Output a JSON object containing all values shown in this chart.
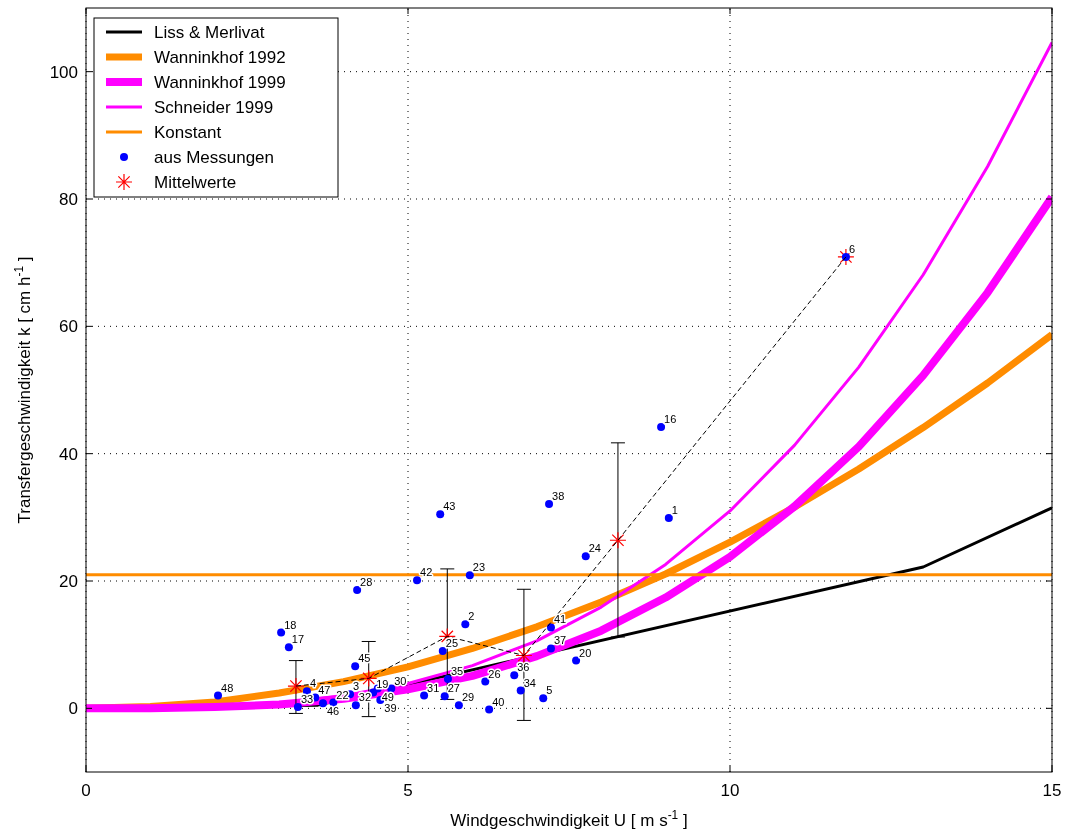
{
  "chart_data": {
    "type": "line",
    "xlabel": "Windgeschwindigkeit U [ m s$^{-1}$ ]",
    "ylabel": "Transfergeschwindigkeit k [ cm h$^{-1}$ ]",
    "xlim": [
      0,
      15
    ],
    "ylim": [
      -10,
      110
    ],
    "xticks": [
      0,
      5,
      10,
      15
    ],
    "yticks": [
      0,
      20,
      40,
      60,
      80,
      100
    ],
    "grid": true,
    "legend": "top left",
    "series": [
      {
        "name": "Liss & Merlivat",
        "color": "#000000",
        "marker": "none",
        "x": [
          0,
          3.6,
          13,
          15
        ],
        "values": [
          0,
          0.5,
          22.2,
          31.5
        ]
      },
      {
        "name": "Wanninkhof 1992",
        "color": "#ff8c00",
        "marker": "none",
        "x": [
          0,
          1,
          2,
          3,
          4,
          5,
          6,
          7,
          8,
          9,
          10,
          11,
          12,
          13,
          14,
          15
        ],
        "values": [
          0,
          0.3,
          1,
          2.4,
          4.2,
          6.5,
          9.4,
          12.8,
          16.7,
          21.1,
          26.1,
          31.6,
          37.6,
          44.1,
          51.1,
          58.7
        ]
      },
      {
        "name": "Wanninkhof 1999",
        "color": "#ff00ff",
        "marker": "none",
        "x": [
          0,
          1,
          2,
          3,
          4,
          5,
          6,
          7,
          8,
          9,
          10,
          11,
          12,
          13,
          14,
          15
        ],
        "values": [
          0,
          0,
          0.2,
          0.6,
          1.5,
          3,
          5.1,
          8.2,
          12.2,
          17.4,
          23.8,
          31.7,
          41.1,
          52.3,
          65.3,
          80.3
        ]
      },
      {
        "name": "Schneider 1999",
        "color": "#ff00ff",
        "marker": "none",
        "x": [
          0,
          1,
          2,
          3,
          4,
          5,
          6,
          7,
          8,
          9,
          10,
          11,
          12,
          13,
          14,
          15
        ],
        "values": [
          0,
          0,
          0.3,
          0.8,
          2,
          3.9,
          6.7,
          10.6,
          15.9,
          22.6,
          31,
          41.3,
          53.6,
          68.1,
          85.1,
          104.6
        ]
      },
      {
        "name": "Konstant",
        "color": "#ff8c00",
        "marker": "none",
        "x": [
          0,
          15
        ],
        "values": [
          21,
          21
        ]
      },
      {
        "name": "aus Messungen",
        "type": "scatter",
        "color": "#0000ff",
        "marker": "circle",
        "x": [
          2.05,
          3.03,
          3.15,
          3.43,
          3.29,
          3.56,
          3.68,
          3.84,
          4.1,
          4.19,
          4.18,
          4.46,
          4.53,
          4.74,
          4.57,
          5.25,
          5.57,
          5.62,
          5.54,
          5.89,
          6.2,
          5.79,
          6.26,
          6.65,
          6.75,
          7.1,
          7.22,
          7.22,
          7.61,
          4.21,
          5.14,
          5.96,
          5.5,
          7.19,
          7.76,
          9.05,
          8.93,
          11.8
        ],
        "values": [
          2,
          11.9,
          9.6,
          2.7,
          0.2,
          1.7,
          0.8,
          0.9,
          2.2,
          0.5,
          6.6,
          2.5,
          3.1,
          3.1,
          1.3,
          2,
          1.9,
          4.6,
          9,
          13.2,
          4.2,
          0.5,
          -0.2,
          5.2,
          2.8,
          1.6,
          9.4,
          12.7,
          7.5,
          18.6,
          20.1,
          20.9,
          30.5,
          32.1,
          23.9,
          29.9,
          44.2,
          70.9
        ]
      },
      {
        "color": "#000000",
        "marker": "none",
        "line_style": "dashed",
        "x": [
          3.26,
          4.39,
          5.61,
          6.8,
          8.26,
          11.8
        ],
        "values": [
          3.5,
          4.7,
          11.3,
          8.3,
          26.4,
          70.9
        ]
      },
      {
        "name": "Mittelwerte",
        "type": "scatter",
        "color": "#ff0000",
        "marker": "cross",
        "x": [
          3.26,
          4.39,
          5.61,
          6.8,
          8.26,
          11.8
        ],
        "values": [
          3.5,
          4.7,
          11.3,
          8.3,
          26.4,
          70.9
        ],
        "errors": [
          [
            -0.8,
            7.5
          ],
          [
            -1.3,
            10.5
          ],
          [
            1.4,
            21.9
          ],
          [
            -1.9,
            18.7
          ],
          [
            11.2,
            41.7
          ],
          null
        ]
      }
    ],
    "annotations": [
      {
        "text": "48",
        "x": 2.05,
        "y": 2
      },
      {
        "text": "18",
        "x": 3.03,
        "y": 11.9
      },
      {
        "text": "17",
        "x": 3.15,
        "y": 9.6
      },
      {
        "text": "4",
        "x": 3.43,
        "y": 2.7
      },
      {
        "text": "33",
        "x": 3.29,
        "y": 0.2
      },
      {
        "text": "47",
        "x": 3.56,
        "y": 1.7
      },
      {
        "text": "46",
        "x": 3.68,
        "y": 0.8
      },
      {
        "text": "22",
        "x": 3.84,
        "y": 0.9
      },
      {
        "text": "3",
        "x": 4.1,
        "y": 2.2
      },
      {
        "text": "32",
        "x": 4.19,
        "y": 0.5
      },
      {
        "text": "45",
        "x": 4.18,
        "y": 6.6
      },
      {
        "text": "19",
        "x": 4.46,
        "y": 2.5
      },
      {
        "text": "49",
        "x": 4.53,
        "y": 3.1
      },
      {
        "text": "30",
        "x": 4.74,
        "y": 3.1
      },
      {
        "text": "39",
        "x": 4.57,
        "y": 1.3
      },
      {
        "text": "31",
        "x": 5.25,
        "y": 2
      },
      {
        "text": "27",
        "x": 5.57,
        "y": 1.9
      },
      {
        "text": "35",
        "x": 5.62,
        "y": 4.6
      },
      {
        "text": "25",
        "x": 5.54,
        "y": 9
      },
      {
        "text": "2",
        "x": 5.89,
        "y": 13.2
      },
      {
        "text": "26",
        "x": 6.2,
        "y": 4.2
      },
      {
        "text": "29",
        "x": 5.79,
        "y": 0.5
      },
      {
        "text": "40",
        "x": 6.26,
        "y": -0.2
      },
      {
        "text": "36",
        "x": 6.65,
        "y": 5.2
      },
      {
        "text": "34",
        "x": 6.75,
        "y": 2.8
      },
      {
        "text": "5",
        "x": 7.1,
        "y": 1.6
      },
      {
        "text": "37",
        "x": 7.22,
        "y": 9.4
      },
      {
        "text": "41",
        "x": 7.22,
        "y": 12.7
      },
      {
        "text": "20",
        "x": 7.61,
        "y": 7.5
      },
      {
        "text": "28",
        "x": 4.21,
        "y": 18.6
      },
      {
        "text": "42",
        "x": 5.14,
        "y": 20.1
      },
      {
        "text": "23",
        "x": 5.96,
        "y": 20.9
      },
      {
        "text": "43",
        "x": 5.5,
        "y": 30.5
      },
      {
        "text": "38",
        "x": 7.19,
        "y": 32.1
      },
      {
        "text": "24",
        "x": 7.76,
        "y": 23.9
      },
      {
        "text": "1",
        "x": 9.05,
        "y": 29.9
      },
      {
        "text": "16",
        "x": 8.93,
        "y": 44.2
      },
      {
        "text": "6",
        "x": 11.8,
        "y": 70.9
      }
    ]
  }
}
